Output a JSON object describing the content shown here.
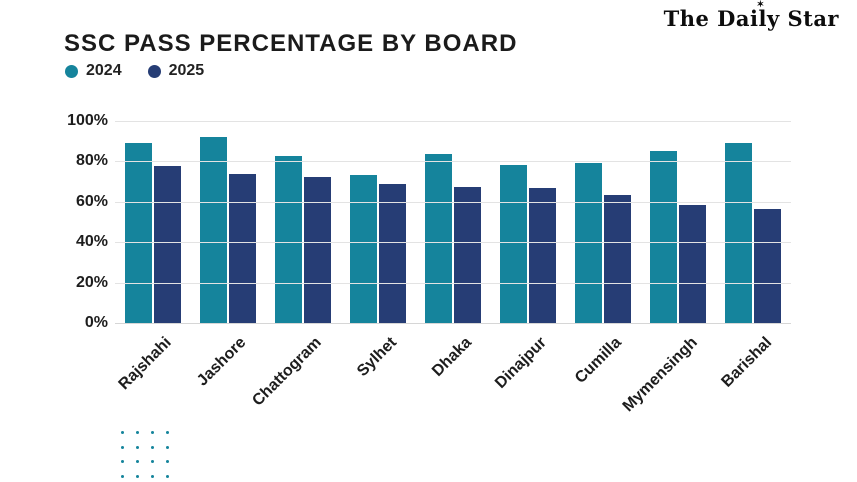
{
  "page": {
    "title": "SSC PASS PERCENTAGE BY BOARD"
  },
  "masthead": {
    "text": "The Daily Star",
    "star_icon": "✶"
  },
  "legend": [
    {
      "label": "2024"
    },
    {
      "label": "2025"
    }
  ],
  "colors": {
    "teal_2024": "#15849C",
    "navy_2025": "#263D75",
    "gridline": "#e3e3e3",
    "text": "#1d1d1d",
    "dot_decoration": "#15849C"
  },
  "chart_data": {
    "type": "bar",
    "title": "SSC PASS PERCENTAGE BY BOARD",
    "categories": [
      "Rajshahi",
      "Jashore",
      "Chattogram",
      "Sylhet",
      "Dhaka",
      "Dinajpur",
      "Cumilla",
      "Mymensingh",
      "Barishal"
    ],
    "series": [
      {
        "name": "2024",
        "color": "#15849C",
        "values": [
          89.3,
          92.3,
          82.8,
          73.4,
          83.9,
          78.4,
          79.2,
          85.0,
          89.1
        ]
      },
      {
        "name": "2025",
        "color": "#263D75",
        "values": [
          77.6,
          73.7,
          72.1,
          68.6,
          67.5,
          67.0,
          63.6,
          58.2,
          56.4
        ]
      }
    ],
    "xlabel": "",
    "ylabel": "",
    "ylim": [
      0,
      100
    ],
    "yticks": [
      100,
      80,
      60,
      40,
      20,
      0
    ],
    "ytick_suffix": "%",
    "grid": true,
    "legend_position": "top-left"
  }
}
